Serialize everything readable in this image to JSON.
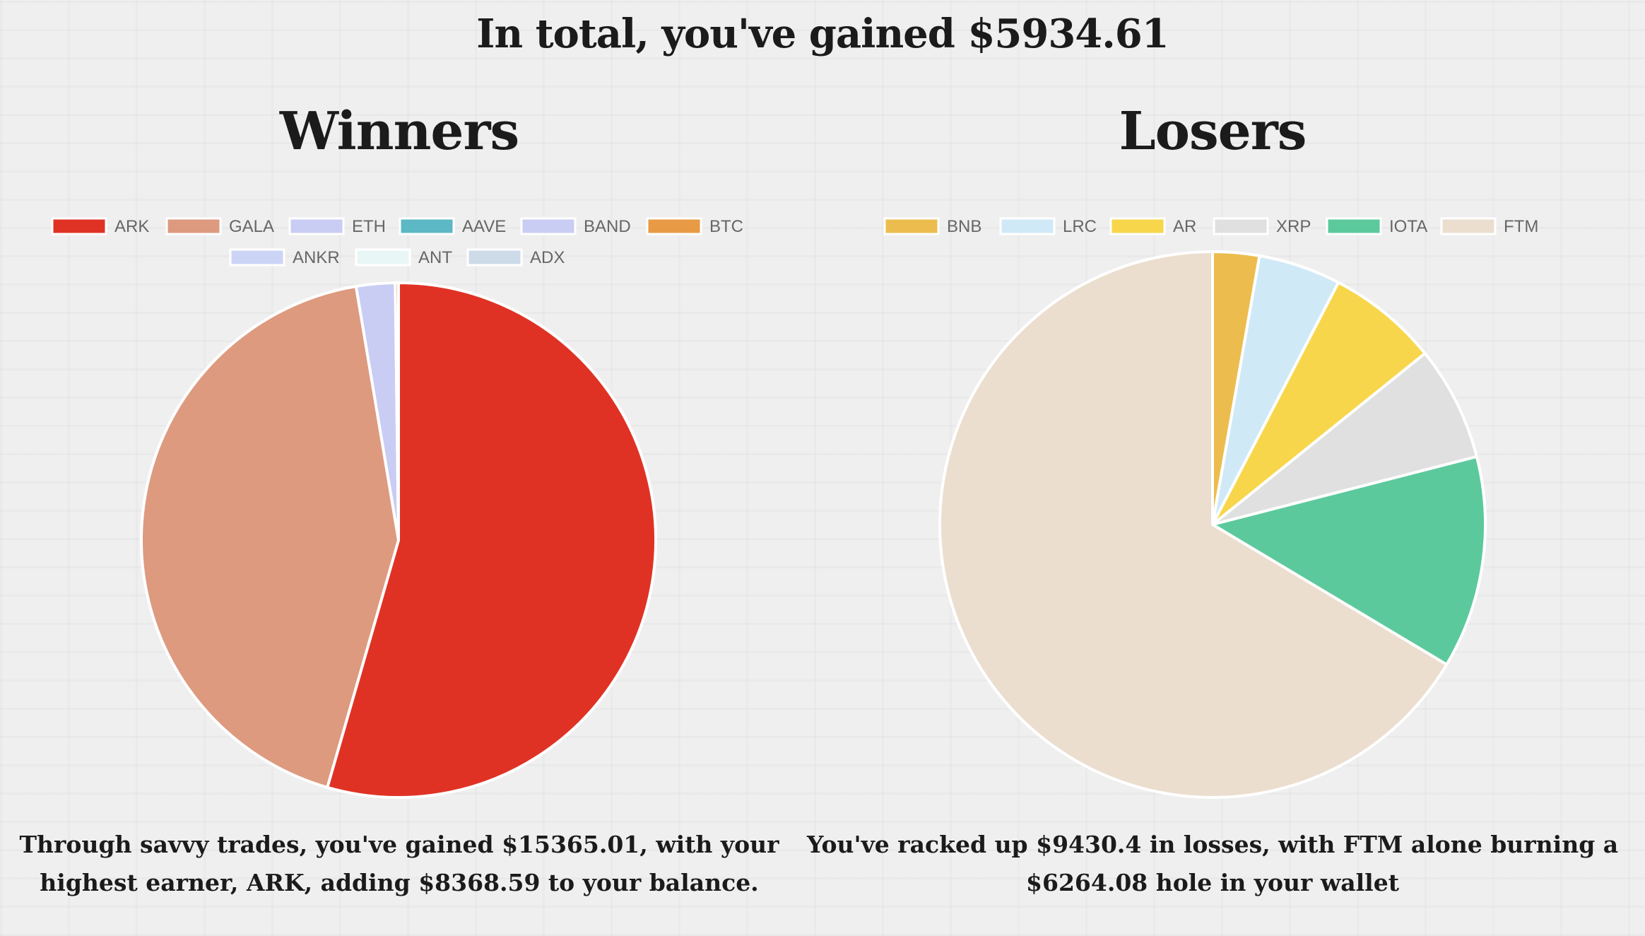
{
  "header": {
    "total_title": "In total, you've gained $5934.61"
  },
  "chart_data": [
    {
      "type": "pie",
      "title": "Winners",
      "legend_placement": "top",
      "categories": [
        "ARK",
        "GALA",
        "ETH",
        "AAVE",
        "BAND",
        "BTC",
        "ANKR",
        "ANT",
        "ADX"
      ],
      "values": [
        8368.59,
        6590.42,
        375.0,
        0.0,
        0.0,
        31.0,
        0.0,
        0.0,
        0.0
      ],
      "colors": [
        "#e03224",
        "#dd9a7f",
        "#c9cdf3",
        "#5cb8c4",
        "#c9cdf3",
        "#e99a44",
        "#ccd4f6",
        "#e8f7f6",
        "#cddbe9"
      ],
      "caption": "Through savvy trades, you've gained $15365.01, with your highest earner, ARK, adding $8368.59 to your balance."
    },
    {
      "type": "pie",
      "title": "Losers",
      "legend_placement": "top",
      "categories": [
        "BNB",
        "LRC",
        "AR",
        "XRP",
        "IOTA",
        "FTM"
      ],
      "values": [
        260.0,
        460.0,
        620.0,
        640.0,
        1186.32,
        6264.08
      ],
      "colors": [
        "#ecbd4e",
        "#d0e9f7",
        "#f7d64b",
        "#e0e0e0",
        "#5cc99c",
        "#ebdecf"
      ],
      "caption": "You've racked up $9430.4 in losses, with FTM alone burning a $6264.08 hole in your wallet"
    }
  ]
}
